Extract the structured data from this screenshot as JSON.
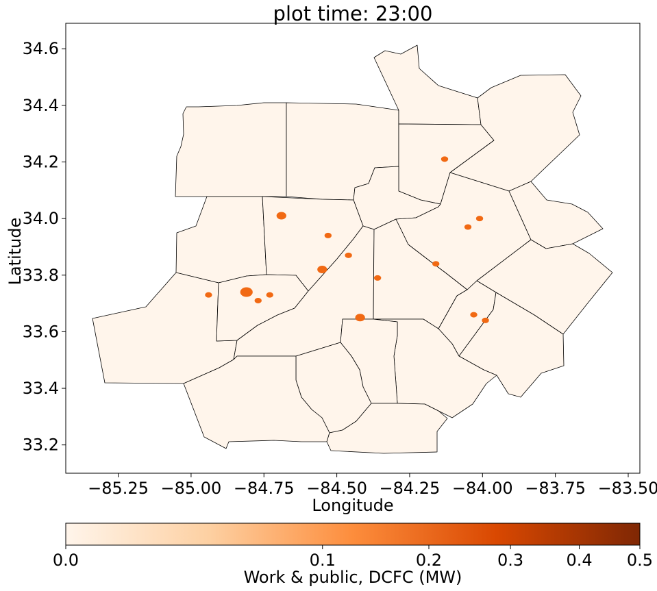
{
  "chart_data": {
    "type": "choropleth-map",
    "title": "plot time: 23:00",
    "xlabel": "Longitude",
    "ylabel": "Latitude",
    "xlim": [
      -85.43,
      -83.46
    ],
    "ylim": [
      33.1,
      34.69
    ],
    "x_ticks": [
      -85.25,
      -85.0,
      -84.75,
      -84.5,
      -84.25,
      -84.0,
      -83.75,
      -83.5
    ],
    "x_tick_labels": [
      "−85.25",
      "−85.00",
      "−84.75",
      "−84.50",
      "−84.25",
      "−84.00",
      "−83.75",
      "−83.50"
    ],
    "y_ticks": [
      33.2,
      33.4,
      33.6,
      33.8,
      34.0,
      34.2,
      34.4,
      34.6
    ],
    "y_tick_labels": [
      "33.2",
      "33.4",
      "33.6",
      "33.8",
      "34.0",
      "34.2",
      "34.4",
      "34.6"
    ],
    "grid": false,
    "colorbar": {
      "label": "Work & public, DCFC (MW)",
      "orientation": "horizontal",
      "scale": "power",
      "range": [
        0.0,
        0.5
      ],
      "ticks": [
        0.0,
        0.1,
        0.2,
        0.3,
        0.4,
        0.5
      ],
      "tick_labels": [
        "0.0",
        "0.1",
        "0.2",
        "0.3",
        "0.4",
        "0.5"
      ],
      "colors": [
        "#fff5eb",
        "#fdd0a2",
        "#fd8d3c",
        "#d94801",
        "#7f2704"
      ]
    },
    "base_fill": "#fff5eb",
    "county_outline_color": "#000000",
    "hotspot_color": "#f16913",
    "hotspots": [
      {
        "lon": -84.69,
        "lat": 34.01,
        "value": 0.02
      },
      {
        "lon": -84.53,
        "lat": 33.94,
        "value": 0.01
      },
      {
        "lon": -84.46,
        "lat": 33.87,
        "value": 0.01
      },
      {
        "lon": -84.55,
        "lat": 33.82,
        "value": 0.02
      },
      {
        "lon": -84.36,
        "lat": 33.79,
        "value": 0.01
      },
      {
        "lon": -84.81,
        "lat": 33.74,
        "value": 0.03
      },
      {
        "lon": -84.77,
        "lat": 33.71,
        "value": 0.01
      },
      {
        "lon": -84.73,
        "lat": 33.73,
        "value": 0.01
      },
      {
        "lon": -84.94,
        "lat": 33.73,
        "value": 0.01
      },
      {
        "lon": -84.42,
        "lat": 33.65,
        "value": 0.02
      },
      {
        "lon": -84.16,
        "lat": 33.84,
        "value": 0.01
      },
      {
        "lon": -84.13,
        "lat": 34.21,
        "value": 0.01
      },
      {
        "lon": -84.01,
        "lat": 34.0,
        "value": 0.01
      },
      {
        "lon": -84.05,
        "lat": 33.97,
        "value": 0.01
      },
      {
        "lon": -84.03,
        "lat": 33.66,
        "value": 0.01
      },
      {
        "lon": -83.99,
        "lat": 33.64,
        "value": 0.01
      }
    ]
  }
}
